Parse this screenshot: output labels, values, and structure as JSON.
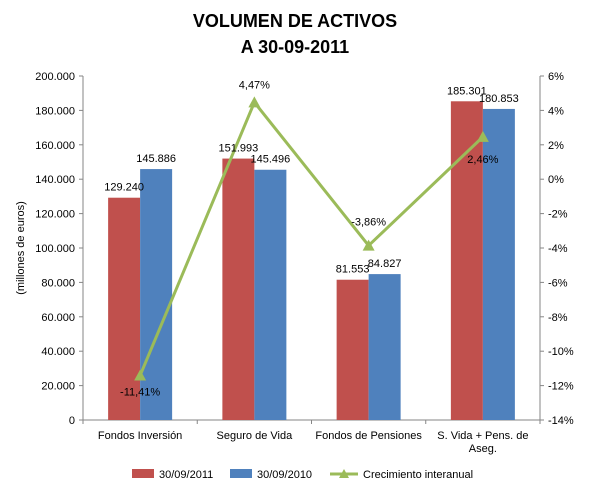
{
  "chart_data": {
    "type": "bar",
    "title_line1": "VOLUMEN DE ACTIVOS",
    "title_line2": "A 30-09-2011",
    "ylabel": "(millones  de euros)",
    "categories": [
      "Fondos Inversión",
      "Seguro de Vida",
      "Fondos de Pensiones",
      "S. Vida + Pens. de|Aseg."
    ],
    "ylim": [
      0,
      200000
    ],
    "y_ticks": [
      "0",
      "20.000",
      "40.000",
      "60.000",
      "80.000",
      "100.000",
      "120.000",
      "140.000",
      "160.000",
      "180.000",
      "200.000"
    ],
    "y2lim": [
      -14,
      6
    ],
    "y2_ticks": [
      "-14%",
      "-12%",
      "-10%",
      "-8%",
      "-6%",
      "-4%",
      "-2%",
      "0%",
      "2%",
      "4%",
      "6%"
    ],
    "series": [
      {
        "name": "30/09/2011",
        "color": "#c0504d",
        "values": [
          129240,
          151993,
          81553,
          185301
        ],
        "labels": [
          "129.240",
          "151.993",
          "81.553",
          "185.301"
        ]
      },
      {
        "name": "30/09/2010",
        "color": "#4f81bd",
        "values": [
          145886,
          145496,
          84827,
          180853
        ],
        "labels": [
          "145.886",
          "145.496",
          "84.827",
          "180.853"
        ]
      }
    ],
    "line_series": {
      "name": "Crecimiento interanual",
      "color": "#9bbb59",
      "axis": "right",
      "values": [
        -11.41,
        4.47,
        -3.86,
        2.46
      ],
      "labels": [
        "-11,41%",
        "4,47%",
        "-3,86%",
        "2,46%"
      ]
    },
    "legend_position": "bottom",
    "grid": false
  }
}
